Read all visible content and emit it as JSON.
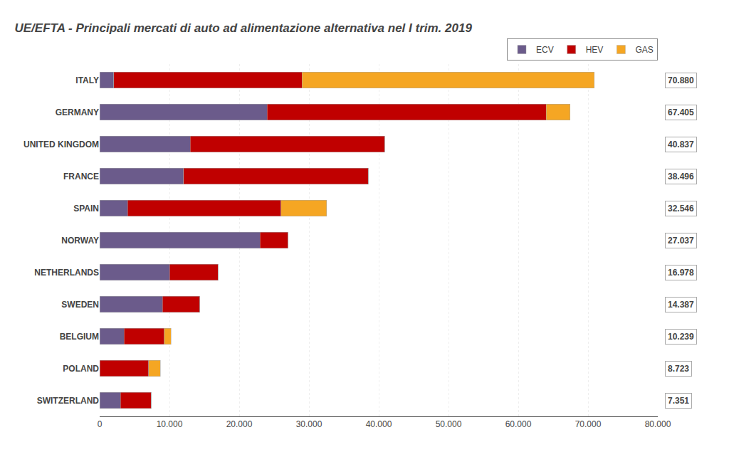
{
  "chart_data": {
    "type": "bar",
    "orientation": "horizontal",
    "stacked": true,
    "title": "UE/EFTA - Principali mercati di auto ad alimentazione alternativa nel I trim. 2019",
    "categories": [
      "ITALY",
      "GERMANY",
      "UNITED KINGDOM",
      "FRANCE",
      "SPAIN",
      "NORWAY",
      "NETHERLANDS",
      "SWEDEN",
      "BELGIUM",
      "POLAND",
      "SWITZERLAND"
    ],
    "series": [
      {
        "name": "ECV",
        "color": "#6B5B8B",
        "values": [
          2000,
          24000,
          13000,
          12000,
          4000,
          23000,
          10000,
          9000,
          3500,
          0,
          3000
        ]
      },
      {
        "name": "HEV",
        "color": "#C00000",
        "values": [
          27000,
          40000,
          27837,
          26496,
          22000,
          4037,
          6978,
          5387,
          5739,
          7000,
          4351
        ]
      },
      {
        "name": "GAS",
        "color": "#F5A623",
        "values": [
          41880,
          3405,
          0,
          0,
          6546,
          0,
          0,
          0,
          1000,
          1723,
          0
        ]
      }
    ],
    "annotations": [
      "70.880",
      "67.405",
      "40.837",
      "38.496",
      "32.546",
      "27.037",
      "16.978",
      "14.387",
      "10.239",
      "8.723",
      "7.351"
    ],
    "xlim": [
      0,
      80000
    ],
    "xticks": [
      0,
      {
        "value": 10000,
        "label": "10.000"
      },
      {
        "value": 20000,
        "label": "20.000"
      },
      {
        "value": 30000,
        "label": "30.000"
      },
      {
        "value": 40000,
        "label": "40.000"
      },
      {
        "value": 50000,
        "label": "50.000"
      },
      {
        "value": 60000,
        "label": "60.000"
      },
      {
        "value": 70000,
        "label": "70.000"
      },
      {
        "value": 80000,
        "label": "80.000"
      }
    ],
    "grid": true,
    "legend": "upper right"
  }
}
